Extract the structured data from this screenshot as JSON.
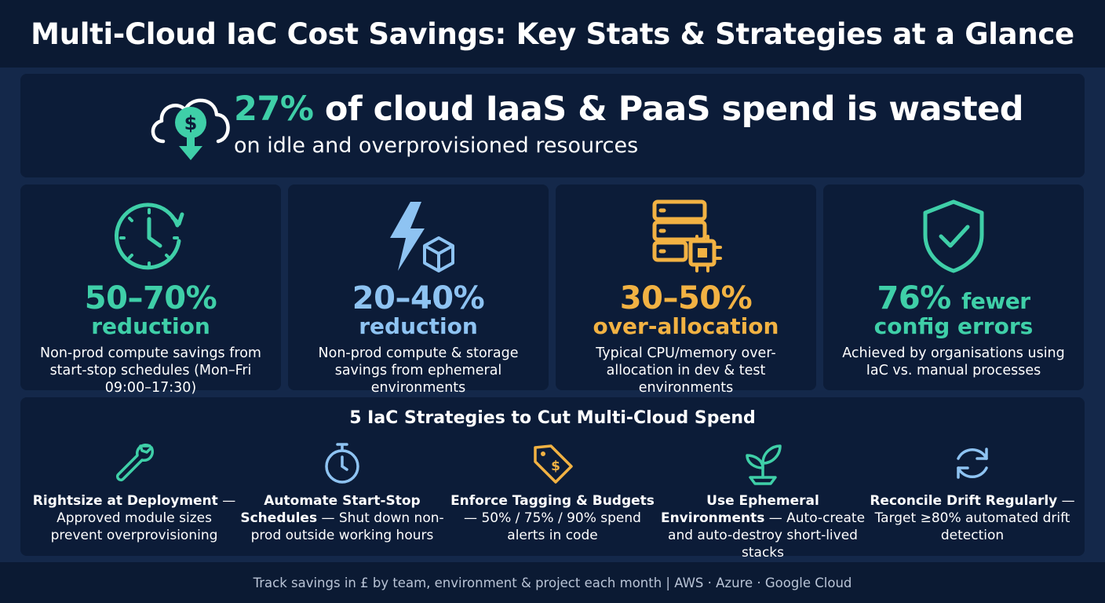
{
  "header": {
    "title": "Multi-Cloud IaC Cost Savings: Key Stats & Strategies at a Glance"
  },
  "hero": {
    "icon": "cloud-dollar-down-icon",
    "highlight": "27%",
    "headline_rest": "of cloud IaaS & PaaS spend is wasted",
    "subline": "on idle and overprovisioned resources"
  },
  "stats": [
    {
      "icon": "clock-icon",
      "value": "50–70%",
      "label": "reduction",
      "desc": "Non-prod compute savings from start-stop schedules (Mon–Fri 09:00–17:30)",
      "color": "#3fcfa8"
    },
    {
      "icon": "lightning-box-icon",
      "value": "20–40%",
      "label": "reduction",
      "desc": "Non-prod compute & storage savings from ephemeral environments",
      "color": "#8ec3f2"
    },
    {
      "icon": "server-chip-icon",
      "value": "30–50%",
      "label": "over-allocation",
      "desc": "Typical CPU/memory over-allocation in dev & test environments",
      "color": "#f2b243"
    },
    {
      "icon": "shield-check-icon",
      "value": "76%",
      "value_suffix": "fewer",
      "label": "config errors",
      "desc": "Achieved by organisations using IaC vs. manual processes",
      "color": "#3fcfa8"
    }
  ],
  "strategies": {
    "title": "5 IaC Strategies to Cut Multi-Cloud Spend",
    "items": [
      {
        "icon": "wrench-icon",
        "title": "Rightsize at Deployment",
        "text": " — Approved module sizes prevent overprovisioning"
      },
      {
        "icon": "stopwatch-icon",
        "title": "Automate Start-Stop Schedules",
        "text": " — Shut down non-prod outside working hours"
      },
      {
        "icon": "price-tag-icon",
        "title": "Enforce Tagging & Budgets",
        "text": " — 50% / 75% / 90% spend alerts in code"
      },
      {
        "icon": "sprout-icon",
        "title": "Use Ephemeral Environments",
        "text": " — Auto-create and auto-destroy short-lived stacks"
      },
      {
        "icon": "refresh-icon",
        "title": "Reconcile Drift Regularly",
        "text": " — Target ≥80% automated drift detection"
      }
    ]
  },
  "footer": {
    "text": "Track savings in £ by team, environment & project each month | AWS · Azure · Google Cloud"
  }
}
